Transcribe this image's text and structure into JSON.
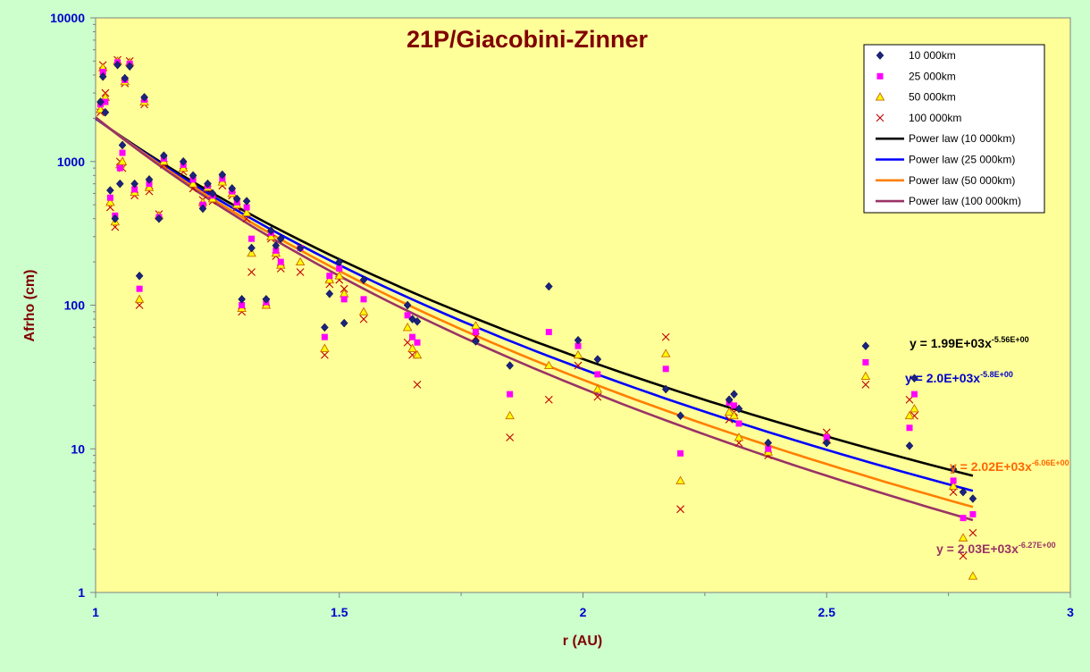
{
  "chart_data": {
    "type": "scatter",
    "title": "21P/Giacobini-Zinner",
    "xlabel": "r (AU)",
    "ylabel": "Afrho (cm)",
    "xlim": [
      1,
      3
    ],
    "ylim": [
      1,
      10000
    ],
    "y_scale": "log",
    "x_ticks": [
      "1",
      "1.5",
      "2",
      "2.5",
      "3"
    ],
    "y_ticks": [
      "1",
      "10",
      "100",
      "1000",
      "10000"
    ],
    "grid": false,
    "legend_position": "top-right",
    "x": [
      1.01,
      1.015,
      1.02,
      1.03,
      1.04,
      1.045,
      1.05,
      1.055,
      1.06,
      1.07,
      1.08,
      1.09,
      1.1,
      1.11,
      1.13,
      1.14,
      1.18,
      1.2,
      1.22,
      1.23,
      1.24,
      1.26,
      1.28,
      1.29,
      1.3,
      1.31,
      1.32,
      1.35,
      1.36,
      1.37,
      1.38,
      1.42,
      1.47,
      1.48,
      1.5,
      1.51,
      1.55,
      1.64,
      1.65,
      1.66,
      1.78,
      1.85,
      1.93,
      1.99,
      2.03,
      2.17,
      2.2,
      2.3,
      2.31,
      2.32,
      2.38,
      2.5,
      2.58,
      2.67,
      2.68,
      2.76,
      2.78,
      2.8
    ],
    "series": [
      {
        "name": "10 000km",
        "marker": "diamond",
        "color": "#1a237e",
        "values": [
          2600,
          3900,
          2200,
          630,
          400,
          4700,
          700,
          1300,
          3800,
          4600,
          700,
          160,
          2800,
          750,
          400,
          1100,
          1000,
          800,
          470,
          700,
          600,
          810,
          650,
          550,
          110,
          530,
          250,
          110,
          330,
          260,
          290,
          250,
          70,
          120,
          200,
          75,
          150,
          100,
          80,
          77,
          56,
          38,
          135,
          57,
          42,
          26,
          17,
          22,
          24,
          19,
          11,
          11,
          52,
          10.5,
          31,
          7.2,
          5,
          4.5
        ]
      },
      {
        "name": "25 000km",
        "marker": "square",
        "color": "#ff00ff",
        "values": [
          2500,
          4200,
          2600,
          560,
          420,
          4900,
          900,
          1150,
          3700,
          4800,
          640,
          130,
          2700,
          700,
          410,
          1050,
          950,
          750,
          500,
          680,
          580,
          760,
          620,
          520,
          100,
          480,
          290,
          105,
          320,
          240,
          200,
          250,
          60,
          160,
          180,
          110,
          110,
          85,
          60,
          55,
          65,
          24,
          65,
          52,
          33,
          36,
          9.3,
          21,
          20,
          15,
          10,
          12,
          40,
          14,
          24,
          6,
          3.3,
          3.5
        ]
      },
      {
        "name": "50 000km",
        "marker": "triangle",
        "color": "#ffa500",
        "values": [
          2300,
          4500,
          2800,
          520,
          380,
          5000,
          950,
          1000,
          3600,
          4900,
          610,
          110,
          2600,
          660,
          420,
          1000,
          900,
          700,
          520,
          660,
          550,
          720,
          600,
          500,
          95,
          440,
          230,
          100,
          300,
          230,
          190,
          200,
          50,
          150,
          160,
          120,
          90,
          70,
          50,
          45,
          72,
          17,
          38,
          45,
          26,
          46,
          6,
          18,
          17,
          12,
          9.5,
          11.5,
          32,
          17,
          19,
          5.5,
          2.4,
          1.3
        ]
      },
      {
        "name": "100 000km",
        "marker": "cross",
        "color": "#c00000",
        "values": [
          2200,
          4700,
          3000,
          480,
          350,
          5100,
          1000,
          900,
          3500,
          5000,
          580,
          100,
          2500,
          620,
          430,
          950,
          850,
          650,
          540,
          640,
          530,
          680,
          580,
          480,
          90,
          400,
          170,
          105,
          290,
          220,
          180,
          170,
          45,
          140,
          150,
          130,
          80,
          55,
          45,
          28,
          60,
          12,
          22,
          38,
          23,
          60,
          3.8,
          16,
          18,
          11,
          9,
          13,
          28,
          22,
          17,
          5,
          1.8,
          2.6
        ]
      }
    ],
    "fits": [
      {
        "name": "Power law (10 000km)",
        "color": "#000000",
        "a": 1990,
        "b": -5.56,
        "x_range": [
          1,
          2.8
        ],
        "equation": "y = 1.99E+03x",
        "exponent": "-5.56E+00",
        "label_color": "#000000"
      },
      {
        "name": "Power law (25 000km)",
        "color": "#0000ff",
        "a": 2000,
        "b": -5.8,
        "x_range": [
          1,
          2.8
        ],
        "equation": "y = 2.0E+03x",
        "exponent": "-5.8E+00",
        "label_color": "#0000cc"
      },
      {
        "name": "Power law (50 000km)",
        "color": "#ff7f00",
        "a": 2020,
        "b": -6.06,
        "x_range": [
          1,
          2.8
        ],
        "equation": "y = 2.02E+03x",
        "exponent": "-6.06E+00",
        "label_color": "#ff6600"
      },
      {
        "name": "Power law (100 000km)",
        "color": "#993366",
        "a": 2030,
        "b": -6.27,
        "x_range": [
          1,
          2.8
        ],
        "equation": "y = 2.03E+03x",
        "exponent": "-6.27E+00",
        "label_color": "#993366"
      }
    ]
  }
}
